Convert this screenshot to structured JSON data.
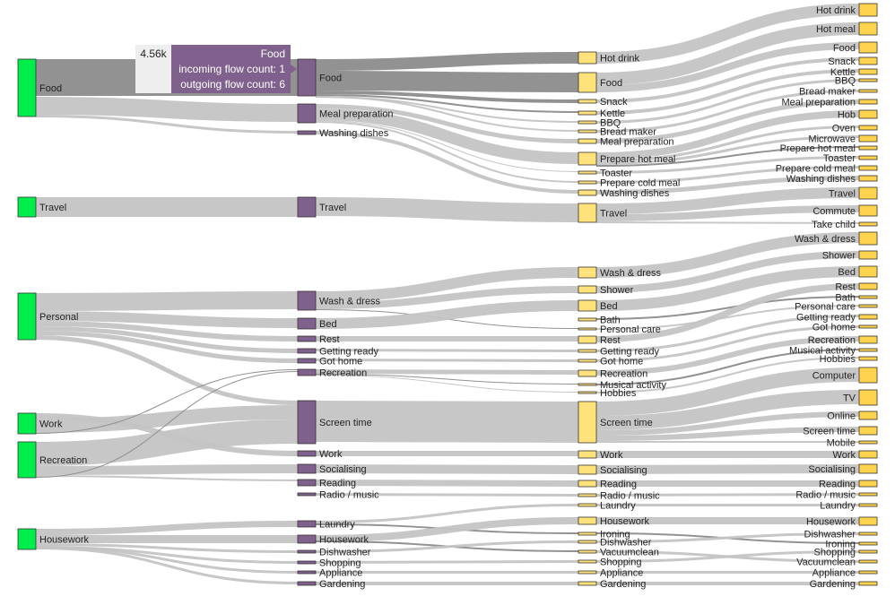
{
  "chart_data": {
    "type": "sankey",
    "title": "",
    "colors": {
      "level0": "#00ee4c",
      "level1": "#80618e",
      "level2": "#ffe27a",
      "level3": "#ffd34d",
      "link": "#c4c4c4",
      "link_highlight": "#8c8c8c",
      "tooltip_bg": "#80618e",
      "node_stroke": "#333333"
    },
    "levels": [
      {
        "level": 0,
        "nodes": [
          "Food",
          "Travel",
          "Personal",
          "Work",
          "Recreation",
          "Housework"
        ]
      },
      {
        "level": 1,
        "nodes": [
          "Food",
          "Meal preparation",
          "Washing dishes",
          "Travel",
          "Wash & dress",
          "Bed",
          "Rest",
          "Getting ready",
          "Got home",
          "Recreation",
          "Screen time",
          "Work",
          "Socialising",
          "Reading",
          "Radio / music",
          "Laundry",
          "Housework",
          "Dishwasher",
          "Shopping",
          "Appliance",
          "Gardening"
        ]
      },
      {
        "level": 2,
        "nodes": [
          "Hot drink",
          "Food",
          "Snack",
          "Kettle",
          "BBQ",
          "Bread maker",
          "Meal preparation",
          "Prepare hot meal",
          "Toaster",
          "Prepare cold meal",
          "Washing dishes",
          "Travel",
          "Wash & dress",
          "Shower",
          "Bed",
          "Bath",
          "Personal care",
          "Rest",
          "Getting ready",
          "Got home",
          "Recreation",
          "Musical activity",
          "Hobbies",
          "Screen time",
          "Work",
          "Socialising",
          "Reading",
          "Radio / music",
          "Laundry",
          "Housework",
          "Ironing",
          "Dishwasher",
          "Vacuumclean",
          "Shopping",
          "Appliance",
          "Gardening"
        ]
      },
      {
        "level": 3,
        "nodes": [
          "Hot drink",
          "Hot meal",
          "Food",
          "Snack",
          "Kettle",
          "BBQ",
          "Bread maker",
          "Meal preparation",
          "Hob",
          "Oven",
          "Microwave",
          "Prepare hot meal",
          "Toaster",
          "Prepare cold meal",
          "Washing dishes",
          "Travel",
          "Commute",
          "Take child",
          "Wash & dress",
          "Shower",
          "Bed",
          "Rest",
          "Bath",
          "Personal care",
          "Getting ready",
          "Got home",
          "Recreation",
          "Musical activity",
          "Hobbies",
          "Computer",
          "TV",
          "Online",
          "Screen time",
          "Mobile",
          "Work",
          "Socialising",
          "Reading",
          "Radio / music",
          "Laundry",
          "Housework",
          "Dishwasher",
          "Ironing",
          "Shopping",
          "Vacuumclean",
          "Appliance",
          "Gardening"
        ]
      }
    ],
    "hover": {
      "node": "Food",
      "value": "4.56k",
      "label": "Food",
      "incoming": "incoming flow count: 1",
      "outgoing": "outgoing flow count: 6"
    }
  }
}
